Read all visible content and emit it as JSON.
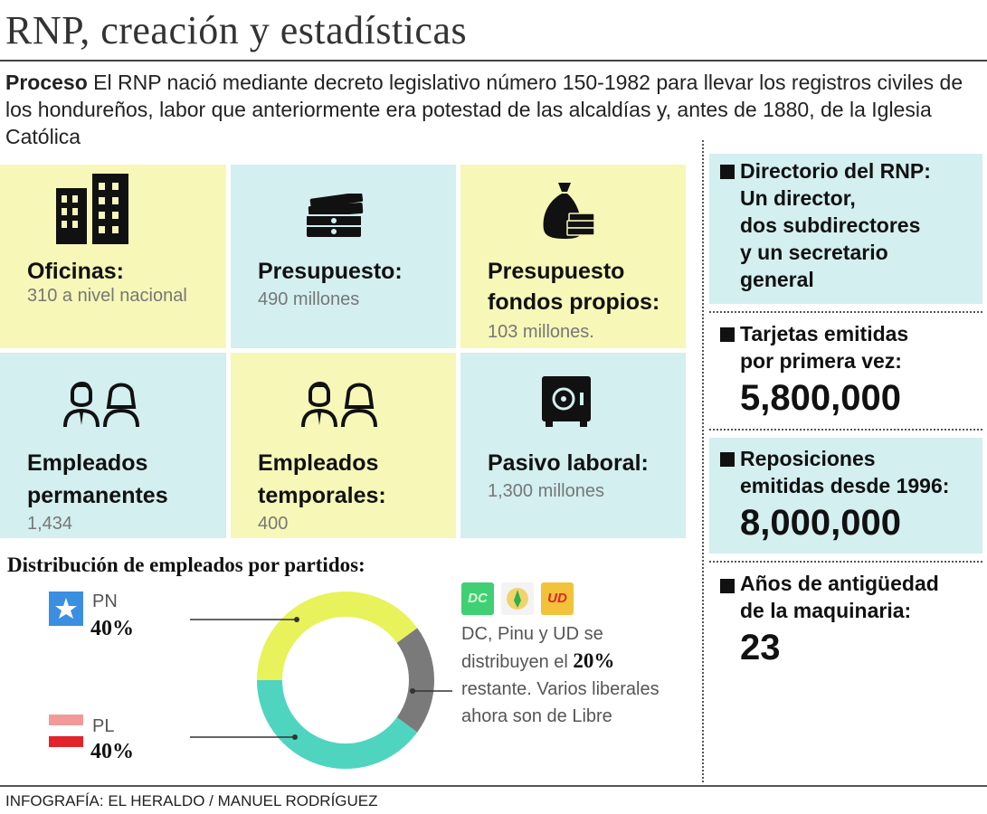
{
  "title": "RNP, creación y estadísticas",
  "intro": {
    "lead": "Proceso",
    "text": " El RNP nació mediante decreto legislativo número 150-1982 para llevar los registros civiles de los hondureños, labor que anteriormente era potestad de las alcaldías y, antes de 1880, de la Iglesia Católica"
  },
  "tiles": [
    {
      "label_1": "Oficinas:",
      "value": "310 a nivel nacional",
      "icon": "buildings-icon"
    },
    {
      "label_1": "Presupuesto:",
      "value": "490 millones",
      "icon": "money-stack-icon"
    },
    {
      "label_1": "Presupuesto",
      "label_2": "fondos propios:",
      "value": "103 millones.",
      "icon": "money-bag-icon"
    },
    {
      "label_1": "Empleados",
      "label_2": "permanentes",
      "value": "1,434",
      "icon": "people-icon"
    },
    {
      "label_1": "Empleados",
      "label_2": "temporales:",
      "value": "400",
      "icon": "people-icon"
    },
    {
      "label_1": "Pasivo laboral:",
      "value": "1,300 millones",
      "icon": "safe-icon"
    }
  ],
  "sidebar": {
    "directorio": {
      "line_1": "Directorio del RNP:",
      "line_2": "Un director,",
      "line_3": "dos subdirectores",
      "line_4": "y un secretario",
      "line_5": "general"
    },
    "tarjetas": {
      "line_1": "Tarjetas emitidas",
      "line_2": "por primera vez:",
      "value": "5,800,000"
    },
    "reposiciones": {
      "line_1": "Reposiciones",
      "line_2": "emitidas desde 1996:",
      "value": "8,000,000"
    },
    "antiguedad": {
      "line_1": "Años de antigüedad",
      "line_2": "de la maquinaria:",
      "value": "23"
    }
  },
  "chart_data": {
    "type": "pie",
    "title": "Distribución de empleados por partidos:",
    "categories": [
      "PN",
      "PL",
      "DC, Pinu y UD"
    ],
    "values": [
      40,
      40,
      20
    ],
    "value_labels": [
      "40%",
      "40%",
      "20%"
    ],
    "colors": [
      "#e8f25a",
      "#4fd4c0",
      "#7a7a7a"
    ],
    "party_logos": [
      "DC",
      "UD"
    ],
    "note": {
      "part_1": "DC, Pinu y UD se distribuyen el ",
      "bold": "20%",
      "part_2": " restante. Varios liberales ahora son de Libre"
    }
  },
  "credit": "INFOGRAFÍA: EL HERALDO / MANUEL RODRÍGUEZ"
}
